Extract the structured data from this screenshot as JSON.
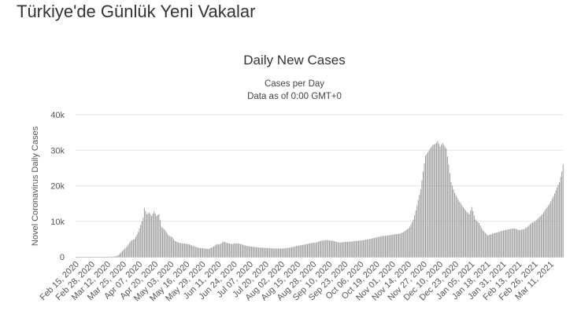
{
  "page": {
    "heading": "Türkiye'de Günlük Yeni Vakalar"
  },
  "chart_data": {
    "type": "bar",
    "title": "Daily New Cases",
    "subtitle_lines": [
      "Cases per Day",
      "Data as of 0:00 GMT+0"
    ],
    "ylabel": "Novel Coronavirus Daily Cases",
    "xlabel": "",
    "ylim": [
      0,
      40000
    ],
    "y_ticks": [
      {
        "value": 0,
        "label": "0"
      },
      {
        "value": 10000,
        "label": "10k"
      },
      {
        "value": 20000,
        "label": "20k"
      },
      {
        "value": 30000,
        "label": "30k"
      },
      {
        "value": 40000,
        "label": "40k"
      }
    ],
    "x_start_date": "2020-02-15",
    "x_end_date": "2021-03-21",
    "x_tick_labels": [
      "Feb 15, 2020",
      "Feb 28, 2020",
      "Mar 12, 2020",
      "Mar 25, 2020",
      "Apr 07, 2020",
      "Apr 20, 2020",
      "May 03, 2020",
      "May 16, 2020",
      "May 29, 2020",
      "Jun 11, 2020",
      "Jun 24, 2020",
      "Jul 07, 2020",
      "Jul 20, 2020",
      "Aug 02, 2020",
      "Aug 15, 2020",
      "Aug 28, 2020",
      "Sep 10, 2020",
      "Sep 23, 2020",
      "Oct 06, 2020",
      "Oct 19, 2020",
      "Nov 01, 2020",
      "Nov 14, 2020",
      "Nov 27, 2020",
      "Dec 10, 2020",
      "Dec 23, 2020",
      "Jan 05, 2021",
      "Jan 18, 2021",
      "Jan 31, 2021",
      "Feb 13, 2021",
      "Feb 26, 2021",
      "Mar 11, 2021"
    ],
    "series": [
      {
        "color": "#999999",
        "points": [
          [
            "2020-02-15",
            0
          ],
          [
            "2020-03-10",
            0
          ],
          [
            "2020-03-11",
            1
          ],
          [
            "2020-03-15",
            20
          ],
          [
            "2020-03-18",
            150
          ],
          [
            "2020-03-20",
            350
          ],
          [
            "2020-03-22",
            950
          ],
          [
            "2020-03-25",
            2000
          ],
          [
            "2020-03-27",
            2600
          ],
          [
            "2020-03-29",
            3500
          ],
          [
            "2020-03-31",
            4500
          ],
          [
            "2020-04-03",
            5000
          ],
          [
            "2020-04-06",
            7000
          ],
          [
            "2020-04-08",
            9000
          ],
          [
            "2020-04-10",
            11000
          ],
          [
            "2020-04-11",
            13800
          ],
          [
            "2020-04-13",
            12000
          ],
          [
            "2020-04-15",
            12500
          ],
          [
            "2020-04-17",
            11500
          ],
          [
            "2020-04-19",
            12800
          ],
          [
            "2020-04-21",
            11500
          ],
          [
            "2020-04-23",
            12000
          ],
          [
            "2020-04-25",
            8500
          ],
          [
            "2020-04-28",
            7500
          ],
          [
            "2020-05-01",
            6000
          ],
          [
            "2020-05-04",
            5500
          ],
          [
            "2020-05-06",
            4500
          ],
          [
            "2020-05-09",
            4000
          ],
          [
            "2020-05-12",
            3800
          ],
          [
            "2020-05-15",
            3700
          ],
          [
            "2020-05-18",
            3500
          ],
          [
            "2020-05-20",
            3200
          ],
          [
            "2020-05-23",
            2800
          ],
          [
            "2020-05-26",
            2500
          ],
          [
            "2020-05-29",
            2400
          ],
          [
            "2020-06-01",
            2300
          ],
          [
            "2020-06-03",
            2200
          ],
          [
            "2020-06-07",
            2900
          ],
          [
            "2020-06-09",
            3500
          ],
          [
            "2020-06-12",
            3500
          ],
          [
            "2020-06-15",
            4300
          ],
          [
            "2020-06-18",
            3900
          ],
          [
            "2020-06-22",
            3600
          ],
          [
            "2020-06-25",
            3800
          ],
          [
            "2020-06-28",
            3700
          ],
          [
            "2020-07-01",
            3400
          ],
          [
            "2020-07-05",
            3000
          ],
          [
            "2020-07-10",
            2800
          ],
          [
            "2020-07-15",
            2600
          ],
          [
            "2020-07-20",
            2500
          ],
          [
            "2020-07-25",
            2400
          ],
          [
            "2020-07-31",
            2300
          ],
          [
            "2020-08-05",
            2400
          ],
          [
            "2020-08-10",
            2700
          ],
          [
            "2020-08-15",
            3100
          ],
          [
            "2020-08-20",
            3400
          ],
          [
            "2020-08-25",
            3800
          ],
          [
            "2020-08-30",
            4000
          ],
          [
            "2020-09-03",
            4500
          ],
          [
            "2020-09-08",
            4700
          ],
          [
            "2020-09-13",
            4500
          ],
          [
            "2020-09-18",
            4000
          ],
          [
            "2020-09-23",
            4200
          ],
          [
            "2020-09-28",
            4300
          ],
          [
            "2020-10-03",
            4500
          ],
          [
            "2020-10-08",
            4700
          ],
          [
            "2020-10-13",
            5000
          ],
          [
            "2020-10-18",
            5400
          ],
          [
            "2020-10-23",
            5800
          ],
          [
            "2020-10-28",
            6000
          ],
          [
            "2020-11-02",
            6300
          ],
          [
            "2020-11-07",
            6500
          ],
          [
            "2020-11-10",
            7000
          ],
          [
            "2020-11-14",
            8000
          ],
          [
            "2020-11-16",
            9000
          ],
          [
            "2020-11-18",
            10500
          ],
          [
            "2020-11-20",
            13000
          ],
          [
            "2020-11-22",
            16000
          ],
          [
            "2020-11-24",
            19000
          ],
          [
            "2020-11-26",
            24000
          ],
          [
            "2020-11-28",
            28500
          ],
          [
            "2020-11-30",
            29500
          ],
          [
            "2020-12-02",
            30500
          ],
          [
            "2020-12-04",
            31500
          ],
          [
            "2020-12-06",
            31800
          ],
          [
            "2020-12-08",
            32500
          ],
          [
            "2020-12-10",
            31000
          ],
          [
            "2020-12-12",
            32000
          ],
          [
            "2020-12-14",
            31000
          ],
          [
            "2020-12-15",
            30500
          ],
          [
            "2020-12-17",
            26000
          ],
          [
            "2020-12-19",
            21000
          ],
          [
            "2020-12-22",
            18000
          ],
          [
            "2020-12-25",
            16000
          ],
          [
            "2020-12-28",
            14500
          ],
          [
            "2020-12-31",
            13000
          ],
          [
            "2021-01-03",
            12000
          ],
          [
            "2021-01-05",
            14000
          ],
          [
            "2021-01-08",
            10500
          ],
          [
            "2021-01-11",
            9500
          ],
          [
            "2021-01-14",
            7500
          ],
          [
            "2021-01-18",
            6000
          ],
          [
            "2021-01-22",
            6500
          ],
          [
            "2021-01-27",
            7000
          ],
          [
            "2021-02-01",
            7500
          ],
          [
            "2021-02-05",
            7800
          ],
          [
            "2021-02-09",
            8000
          ],
          [
            "2021-02-13",
            7500
          ],
          [
            "2021-02-17",
            7800
          ],
          [
            "2021-02-20",
            8500
          ],
          [
            "2021-02-23",
            9500
          ],
          [
            "2021-02-26",
            10000
          ],
          [
            "2021-03-01",
            11000
          ],
          [
            "2021-03-04",
            12000
          ],
          [
            "2021-03-07",
            13500
          ],
          [
            "2021-03-10",
            15000
          ],
          [
            "2021-03-13",
            17000
          ],
          [
            "2021-03-16",
            19500
          ],
          [
            "2021-03-18",
            21000
          ],
          [
            "2021-03-20",
            24000
          ],
          [
            "2021-03-21",
            26000
          ]
        ]
      }
    ],
    "grid": true,
    "legend": "none"
  }
}
